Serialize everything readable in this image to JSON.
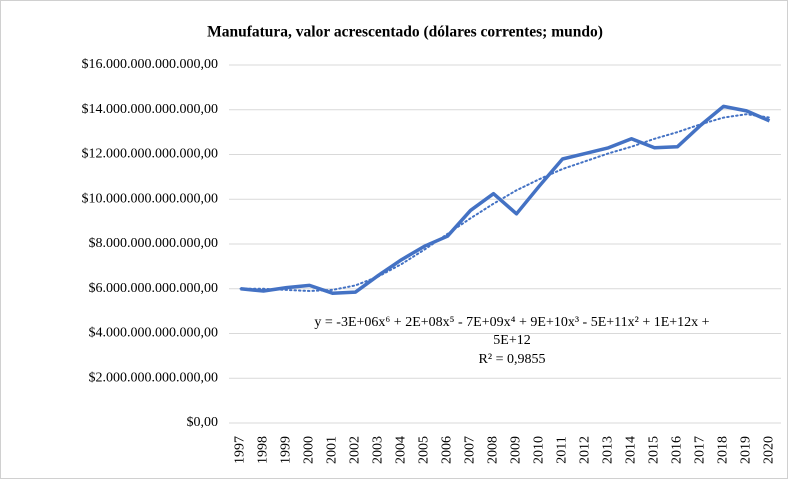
{
  "chart_data": {
    "type": "line",
    "title": "Manufatura, valor acrescentado (dólares correntes; mundo)",
    "categories": [
      "1997",
      "1998",
      "1999",
      "2000",
      "2001",
      "2002",
      "2003",
      "2004",
      "2005",
      "2006",
      "2007",
      "2008",
      "2009",
      "2010",
      "2011",
      "2012",
      "2013",
      "2014",
      "2015",
      "2016",
      "2017",
      "2018",
      "2019",
      "2020"
    ],
    "series": [
      {
        "color": "#4472c4",
        "values": [
          6000000000000,
          5900000000000,
          6050000000000,
          6150000000000,
          5800000000000,
          5850000000000,
          6600000000000,
          7300000000000,
          7900000000000,
          8350000000000,
          9500000000000,
          10250000000000,
          9350000000000,
          10600000000000,
          11800000000000,
          12050000000000,
          12300000000000,
          12700000000000,
          12300000000000,
          12350000000000,
          13300000000000,
          14150000000000,
          13950000000000,
          13500000000000
        ]
      }
    ],
    "trendline": {
      "color": "#4472c4",
      "style": "dotted",
      "values": [
        6000000000000,
        6000000000000,
        5950000000000,
        5900000000000,
        5950000000000,
        6150000000000,
        6550000000000,
        7100000000000,
        7750000000000,
        8450000000000,
        9150000000000,
        9800000000000,
        10400000000000,
        10900000000000,
        11350000000000,
        11700000000000,
        12050000000000,
        12350000000000,
        12700000000000,
        13000000000000,
        13350000000000,
        13650000000000,
        13800000000000,
        13650000000000
      ],
      "equation": [
        "y = -3E+06x⁶ + 2E+08x⁵ - 7E+09x⁴ + 9E+10x³ - 5E+11x² + 1E+12x +",
        "5E+12"
      ],
      "r_squared": "R² = 0,9855"
    },
    "ylim": [
      0,
      16000000000000
    ],
    "yticks": [
      {
        "value": 0,
        "label": "$0,00"
      },
      {
        "value": 2000000000000,
        "label": "$2.000.000.000.000,00"
      },
      {
        "value": 4000000000000,
        "label": "$4.000.000.000.000,00"
      },
      {
        "value": 6000000000000,
        "label": "$6.000.000.000.000,00"
      },
      {
        "value": 8000000000000,
        "label": "$8.000.000.000.000,00"
      },
      {
        "value": 10000000000000,
        "label": "$10.000.000.000.000,00"
      },
      {
        "value": 12000000000000,
        "label": "$12.000.000.000.000,00"
      },
      {
        "value": 14000000000000,
        "label": "$14.000.000.000.000,00"
      },
      {
        "value": 16000000000000,
        "label": "$16.000.000.000.000,00"
      }
    ],
    "grid": true
  }
}
